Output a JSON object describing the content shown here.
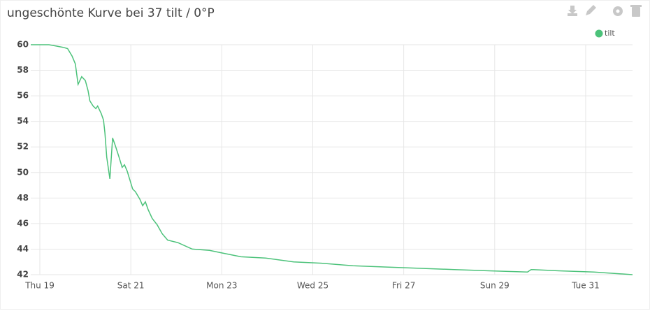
{
  "chart_data": {
    "type": "line",
    "title": "ungeschönte Kurve bei 37 tilt / 0°P",
    "x": [
      -0.2,
      0.2,
      0.35,
      0.51,
      0.61,
      0.71,
      0.78,
      0.84,
      0.92,
      1.0,
      1.06,
      1.1,
      1.17,
      1.23,
      1.27,
      1.35,
      1.4,
      1.43,
      1.47,
      1.54,
      1.6,
      1.66,
      1.74,
      1.81,
      1.86,
      1.92,
      1.98,
      2.04,
      2.1,
      2.2,
      2.26,
      2.32,
      2.38,
      2.47,
      2.58,
      2.69,
      2.81,
      3.04,
      3.35,
      3.73,
      4.0,
      4.42,
      4.96,
      5.58,
      6.19,
      6.88,
      7.57,
      8.34,
      9.11,
      9.88,
      10.72,
      10.8,
      11.41,
      12.18,
      13.03
    ],
    "series": [
      {
        "name": "tilt",
        "color": "#4cc27a",
        "values": [
          60,
          60,
          59.9,
          59.8,
          59.7,
          59.1,
          58.5,
          56.9,
          57.5,
          57.2,
          56.4,
          55.6,
          55.2,
          55.0,
          55.2,
          54.6,
          54.1,
          53.1,
          51.2,
          49.5,
          52.7,
          52.1,
          51.2,
          50.4,
          50.6,
          50.1,
          49.4,
          48.7,
          48.5,
          47.9,
          47.4,
          47.7,
          47.1,
          46.4,
          45.9,
          45.2,
          44.7,
          44.5,
          44.0,
          43.9,
          43.7,
          43.4,
          43.3,
          43.0,
          42.9,
          42.7,
          42.6,
          42.5,
          42.4,
          42.3,
          42.2,
          42.4,
          42.3,
          42.2,
          42.0
        ]
      }
    ],
    "xlim": [
      -0.2,
      13.03
    ],
    "xticks": [
      {
        "value": 0,
        "label": "Thu 19"
      },
      {
        "value": 2,
        "label": "Sat 21"
      },
      {
        "value": 4,
        "label": "Mon 23"
      },
      {
        "value": 6,
        "label": "Wed 25"
      },
      {
        "value": 8,
        "label": "Fri 27"
      },
      {
        "value": 10,
        "label": "Sun 29"
      },
      {
        "value": 12,
        "label": "Tue 31"
      }
    ],
    "ylim": [
      42,
      60
    ],
    "yticks": [
      42,
      44,
      46,
      48,
      50,
      52,
      54,
      56,
      58,
      60
    ],
    "grid": true,
    "legend": "top-right"
  }
}
